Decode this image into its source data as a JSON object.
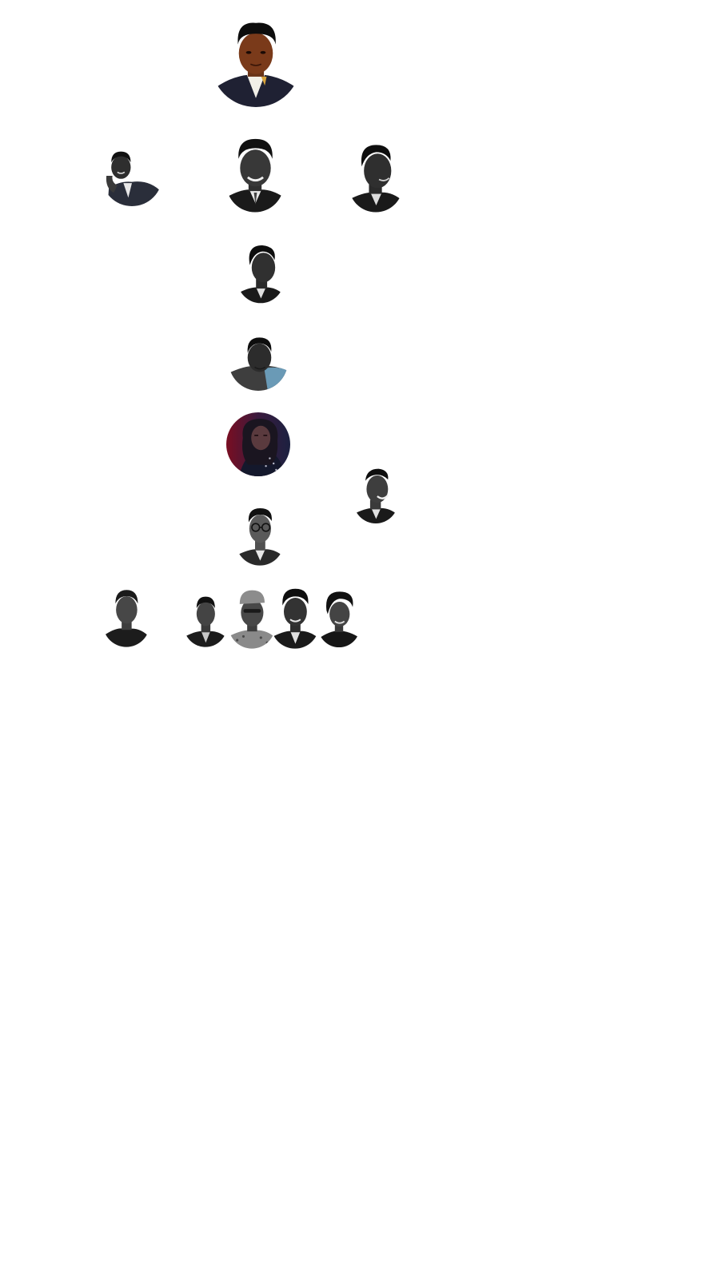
{
  "page": {
    "background": "#ffffff"
  },
  "team": {
    "members": [
      {
        "role": "lead",
        "style": "color-warm",
        "icon": "person-portrait-icon",
        "accent": "#c47a2c"
      },
      {
        "role": "left-branch",
        "style": "grayscale",
        "icon": "person-portrait-icon",
        "accent": "#9a9a9a"
      },
      {
        "role": "center-branch",
        "style": "grayscale",
        "icon": "person-portrait-icon",
        "accent": "#9a9a9a"
      },
      {
        "role": "right-branch",
        "style": "grayscale",
        "icon": "person-portrait-icon",
        "accent": "#9a9a9a"
      },
      {
        "role": "center-tier-3",
        "style": "grayscale",
        "icon": "person-portrait-icon",
        "accent": "#9a9a9a"
      },
      {
        "role": "center-tier-4",
        "style": "color-muted",
        "icon": "person-portrait-icon",
        "accent": "#5a8aa8"
      },
      {
        "role": "center-tier-5",
        "style": "color-purple",
        "icon": "person-portrait-icon",
        "accent": "#7a1b3a"
      },
      {
        "role": "right-tier-5",
        "style": "grayscale",
        "icon": "person-portrait-icon",
        "accent": "#9a9a9a"
      },
      {
        "role": "center-tier-6",
        "style": "grayscale",
        "icon": "person-portrait-icon",
        "accent": "#9a9a9a"
      },
      {
        "role": "bottom-left",
        "style": "grayscale",
        "icon": "person-portrait-icon",
        "accent": "#9a9a9a"
      },
      {
        "role": "bottom-group-1",
        "style": "grayscale",
        "icon": "person-portrait-icon",
        "accent": "#9a9a9a"
      },
      {
        "role": "bottom-group-2",
        "style": "grayscale",
        "icon": "person-portrait-icon",
        "accent": "#9a9a9a"
      },
      {
        "role": "bottom-group-3",
        "style": "grayscale",
        "icon": "person-portrait-icon",
        "accent": "#9a9a9a"
      },
      {
        "role": "bottom-group-4",
        "style": "grayscale",
        "icon": "person-portrait-icon",
        "accent": "#9a9a9a"
      }
    ]
  }
}
